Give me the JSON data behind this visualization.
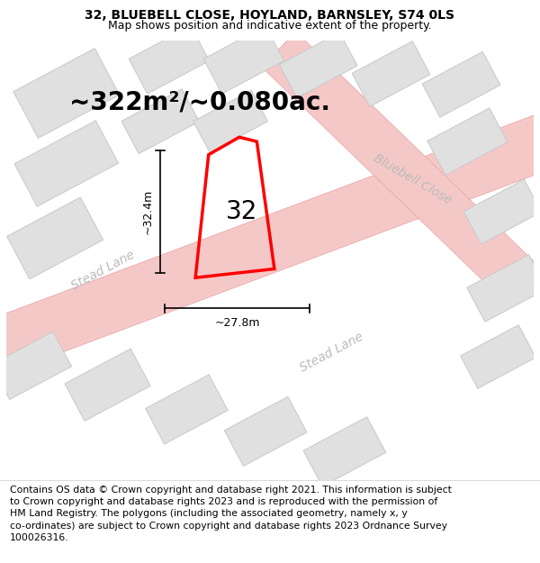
{
  "title": "32, BLUEBELL CLOSE, HOYLAND, BARNSLEY, S74 0LS",
  "subtitle": "Map shows position and indicative extent of the property.",
  "footer": "Contains OS data © Crown copyright and database right 2021. This information is subject\nto Crown copyright and database rights 2023 and is reproduced with the permission of\nHM Land Registry. The polygons (including the associated geometry, namely x, y\nco-ordinates) are subject to Crown copyright and database rights 2023 Ordnance Survey\n100026316.",
  "area_text": "~322m²/~0.080ac.",
  "dim_height": "~32.4m",
  "dim_width": "~27.8m",
  "house_number": "32",
  "map_bg": "#efefef",
  "road_color": "#f5c8c8",
  "road_stroke": "#e8a0a0",
  "building_fill": "#e0e0e0",
  "building_stroke": "#c8c8c8",
  "title_fontsize": 10,
  "subtitle_fontsize": 9,
  "footer_fontsize": 7.8,
  "area_fontsize": 20,
  "label_fontsize": 20,
  "dim_fontsize": 9,
  "street_fontsize": 10
}
